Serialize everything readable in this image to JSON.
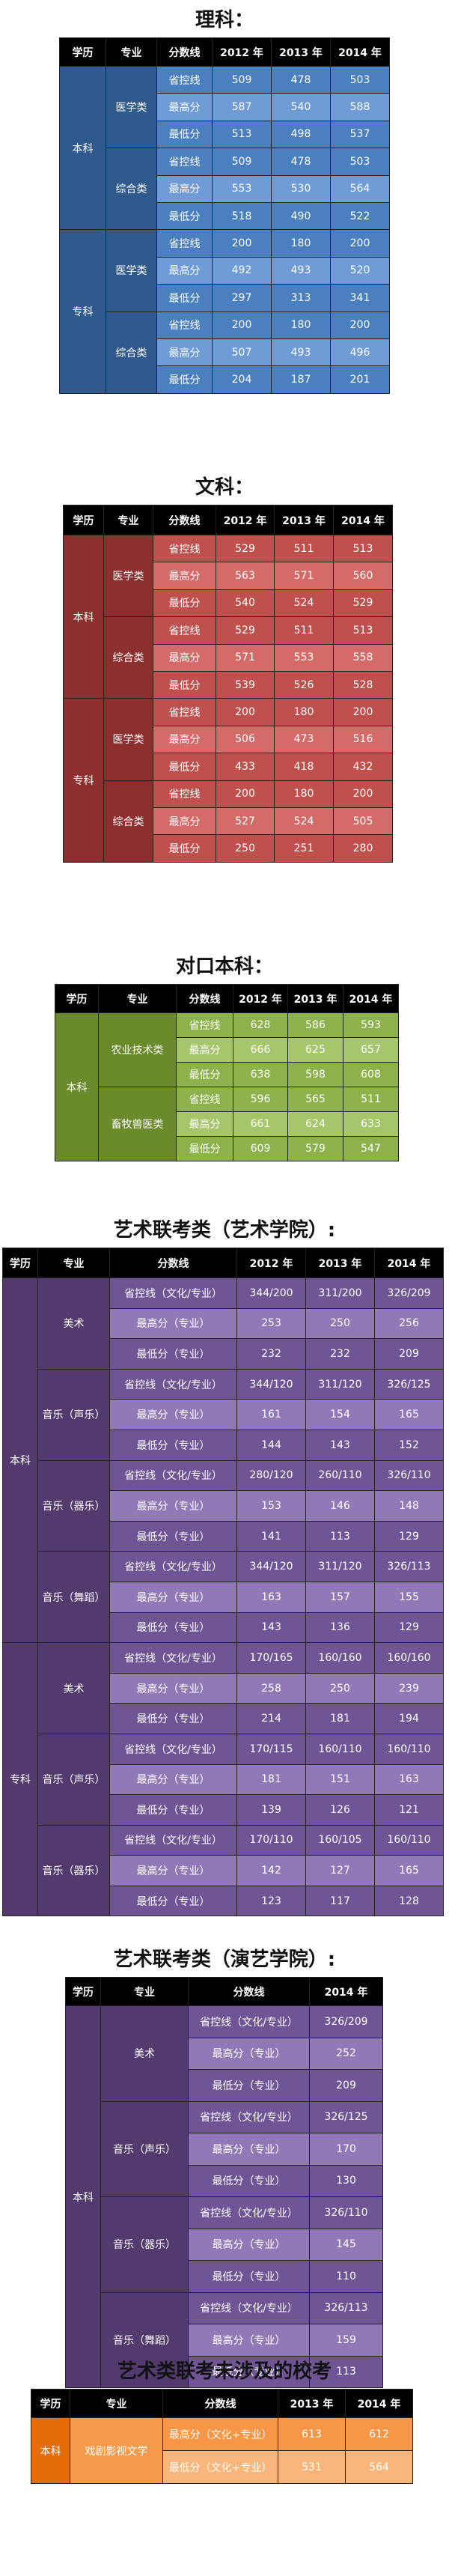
{
  "sections": [
    {
      "title": "理科：",
      "theme": "blue",
      "headers": [
        "学历",
        "专业",
        "分数线",
        "2012 年",
        "2013 年",
        "2014 年"
      ],
      "groups": [
        {
          "level": "本科",
          "majors": [
            {
              "name": "医学类",
              "rows": [
                {
                  "type": "省控线",
                  "values": [
                    "509",
                    "478",
                    "503"
                  ]
                },
                {
                  "type": "最高分",
                  "values": [
                    "587",
                    "540",
                    "588"
                  ]
                },
                {
                  "type": "最低分",
                  "values": [
                    "513",
                    "498",
                    "537"
                  ]
                }
              ]
            },
            {
              "name": "综合类",
              "rows": [
                {
                  "type": "省控线",
                  "values": [
                    "509",
                    "478",
                    "503"
                  ]
                },
                {
                  "type": "最高分",
                  "values": [
                    "553",
                    "530",
                    "564"
                  ]
                },
                {
                  "type": "最低分",
                  "values": [
                    "518",
                    "490",
                    "522"
                  ]
                }
              ]
            }
          ]
        },
        {
          "level": "专科",
          "majors": [
            {
              "name": "医学类",
              "rows": [
                {
                  "type": "省控线",
                  "values": [
                    "200",
                    "180",
                    "200"
                  ]
                },
                {
                  "type": "最高分",
                  "values": [
                    "492",
                    "493",
                    "520"
                  ]
                },
                {
                  "type": "最低分",
                  "values": [
                    "297",
                    "313",
                    "341"
                  ]
                }
              ]
            },
            {
              "name": "综合类",
              "rows": [
                {
                  "type": "省控线",
                  "values": [
                    "200",
                    "180",
                    "200"
                  ]
                },
                {
                  "type": "最高分",
                  "values": [
                    "507",
                    "493",
                    "496"
                  ]
                },
                {
                  "type": "最低分",
                  "values": [
                    "204",
                    "187",
                    "201"
                  ]
                }
              ]
            }
          ]
        }
      ]
    },
    {
      "title": "文科：",
      "theme": "red",
      "headers": [
        "学历",
        "专业",
        "分数线",
        "2012 年",
        "2013 年",
        "2014 年"
      ],
      "groups": [
        {
          "level": "本科",
          "majors": [
            {
              "name": "医学类",
              "rows": [
                {
                  "type": "省控线",
                  "values": [
                    "529",
                    "511",
                    "513"
                  ]
                },
                {
                  "type": "最高分",
                  "values": [
                    "563",
                    "571",
                    "560"
                  ]
                },
                {
                  "type": "最低分",
                  "values": [
                    "540",
                    "524",
                    "529"
                  ]
                }
              ]
            },
            {
              "name": "综合类",
              "rows": [
                {
                  "type": "省控线",
                  "values": [
                    "529",
                    "511",
                    "513"
                  ]
                },
                {
                  "type": "最高分",
                  "values": [
                    "571",
                    "553",
                    "558"
                  ]
                },
                {
                  "type": "最低分",
                  "values": [
                    "539",
                    "526",
                    "528"
                  ]
                }
              ]
            }
          ]
        },
        {
          "level": "专科",
          "majors": [
            {
              "name": "医学类",
              "rows": [
                {
                  "type": "省控线",
                  "values": [
                    "200",
                    "180",
                    "200"
                  ]
                },
                {
                  "type": "最高分",
                  "values": [
                    "506",
                    "473",
                    "516"
                  ]
                },
                {
                  "type": "最低分",
                  "values": [
                    "433",
                    "418",
                    "432"
                  ]
                }
              ]
            },
            {
              "name": "综合类",
              "rows": [
                {
                  "type": "省控线",
                  "values": [
                    "200",
                    "180",
                    "200"
                  ]
                },
                {
                  "type": "最高分",
                  "values": [
                    "527",
                    "524",
                    "505"
                  ]
                },
                {
                  "type": "最低分",
                  "values": [
                    "250",
                    "251",
                    "280"
                  ]
                }
              ]
            }
          ]
        }
      ]
    },
    {
      "title": "对口本科：",
      "theme": "green",
      "headers": [
        "学历",
        "专业",
        "分数线",
        "2012 年",
        "2013 年",
        "2014 年"
      ],
      "groups": [
        {
          "level": "本科",
          "majors": [
            {
              "name": "农业技术类",
              "rows": [
                {
                  "type": "省控线",
                  "values": [
                    "628",
                    "586",
                    "593"
                  ]
                },
                {
                  "type": "最高分",
                  "values": [
                    "666",
                    "625",
                    "657"
                  ]
                },
                {
                  "type": "最低分",
                  "values": [
                    "638",
                    "598",
                    "608"
                  ]
                }
              ]
            },
            {
              "name": "畜牧兽医类",
              "rows": [
                {
                  "type": "省控线",
                  "values": [
                    "596",
                    "565",
                    "511"
                  ]
                },
                {
                  "type": "最高分",
                  "values": [
                    "661",
                    "624",
                    "633"
                  ]
                },
                {
                  "type": "最低分",
                  "values": [
                    "609",
                    "579",
                    "547"
                  ]
                }
              ]
            }
          ]
        }
      ]
    },
    {
      "title": "艺术联考类（艺术学院）:",
      "theme": "purple",
      "headers": [
        "学历",
        "专业",
        "分数线",
        "2012 年",
        "2013 年",
        "2014 年"
      ],
      "groups": [
        {
          "level": "本科",
          "majors": [
            {
              "name": "美术",
              "rows": [
                {
                  "type": "省控线（文化/专业）",
                  "values": [
                    "344/200",
                    "311/200",
                    "326/209"
                  ]
                },
                {
                  "type": "最高分（专业）",
                  "values": [
                    "253",
                    "250",
                    "256"
                  ]
                },
                {
                  "type": "最低分（专业）",
                  "values": [
                    "232",
                    "232",
                    "209"
                  ]
                }
              ]
            },
            {
              "name": "音乐（声乐）",
              "rows": [
                {
                  "type": "省控线（文化/专业）",
                  "values": [
                    "344/120",
                    "311/120",
                    "326/125"
                  ]
                },
                {
                  "type": "最高分（专业）",
                  "values": [
                    "161",
                    "154",
                    "165"
                  ]
                },
                {
                  "type": "最低分（专业）",
                  "values": [
                    "144",
                    "143",
                    "152"
                  ]
                }
              ]
            },
            {
              "name": "音乐（器乐）",
              "rows": [
                {
                  "type": "省控线（文化/专业）",
                  "values": [
                    "280/120",
                    "260/110",
                    "326/110"
                  ]
                },
                {
                  "type": "最高分（专业）",
                  "values": [
                    "153",
                    "146",
                    "148"
                  ]
                },
                {
                  "type": "最低分（专业）",
                  "values": [
                    "141",
                    "113",
                    "129"
                  ]
                }
              ]
            },
            {
              "name": "音乐（舞蹈）",
              "rows": [
                {
                  "type": "省控线（文化/专业）",
                  "values": [
                    "344/120",
                    "311/120",
                    "326/113"
                  ]
                },
                {
                  "type": "最高分（专业）",
                  "values": [
                    "163",
                    "157",
                    "155"
                  ]
                },
                {
                  "type": "最低分（专业）",
                  "values": [
                    "143",
                    "136",
                    "129"
                  ]
                }
              ]
            }
          ]
        },
        {
          "level": "专科",
          "majors": [
            {
              "name": "美术",
              "rows": [
                {
                  "type": "省控线（文化/专业）",
                  "values": [
                    "170/165",
                    "160/160",
                    "160/160"
                  ]
                },
                {
                  "type": "最高分（专业）",
                  "values": [
                    "258",
                    "250",
                    "239"
                  ]
                },
                {
                  "type": "最低分（专业）",
                  "values": [
                    "214",
                    "181",
                    "194"
                  ]
                }
              ]
            },
            {
              "name": "音乐（声乐）",
              "rows": [
                {
                  "type": "省控线（文化/专业）",
                  "values": [
                    "170/115",
                    "160/110",
                    "160/110"
                  ]
                },
                {
                  "type": "最高分（专业）",
                  "values": [
                    "181",
                    "151",
                    "163"
                  ]
                },
                {
                  "type": "最低分（专业）",
                  "values": [
                    "139",
                    "126",
                    "121"
                  ]
                }
              ]
            },
            {
              "name": "音乐（器乐）",
              "rows": [
                {
                  "type": "省控线（文化/专业）",
                  "values": [
                    "170/110",
                    "160/105",
                    "160/110"
                  ]
                },
                {
                  "type": "最高分（专业）",
                  "values": [
                    "142",
                    "127",
                    "165"
                  ]
                },
                {
                  "type": "最低分（专业）",
                  "values": [
                    "123",
                    "117",
                    "128"
                  ]
                }
              ]
            }
          ]
        }
      ]
    },
    {
      "title": "艺术联考类（演艺学院）:",
      "theme": "purple",
      "headers": [
        "学历",
        "专业",
        "分数线",
        "2014 年"
      ],
      "groups": [
        {
          "level": "本科",
          "majors": [
            {
              "name": "美术",
              "rows": [
                {
                  "type": "省控线（文化/专业）",
                  "values": [
                    "326/209"
                  ]
                },
                {
                  "type": "最高分（专业）",
                  "values": [
                    "252"
                  ]
                },
                {
                  "type": "最低分（专业）",
                  "values": [
                    "209"
                  ]
                }
              ]
            },
            {
              "name": "音乐（声乐）",
              "rows": [
                {
                  "type": "省控线（文化/专业）",
                  "values": [
                    "326/125"
                  ]
                },
                {
                  "type": "最高分（专业）",
                  "values": [
                    "170"
                  ]
                },
                {
                  "type": "最低分（专业）",
                  "values": [
                    "130"
                  ]
                }
              ]
            },
            {
              "name": "音乐（器乐）",
              "rows": [
                {
                  "type": "省控线（文化/专业）",
                  "values": [
                    "326/110"
                  ]
                },
                {
                  "type": "最高分（专业）",
                  "values": [
                    "145"
                  ]
                },
                {
                  "type": "最低分（专业）",
                  "values": [
                    "110"
                  ]
                }
              ]
            },
            {
              "name": "音乐（舞蹈）",
              "rows": [
                {
                  "type": "省控线（文化/专业）",
                  "values": [
                    "326/113"
                  ]
                },
                {
                  "type": "最高分（专业）",
                  "values": [
                    "159"
                  ]
                },
                {
                  "type": "最低分（专业）",
                  "values": [
                    "113"
                  ]
                }
              ]
            }
          ]
        }
      ]
    },
    {
      "title": "艺术类联考未涉及的校考",
      "theme": "orange",
      "headers": [
        "学历",
        "专业",
        "分数线",
        "2013 年",
        "2014 年"
      ],
      "groups": [
        {
          "level": "本科",
          "majors": [
            {
              "name": "戏剧影视文学",
              "rows": [
                {
                  "type": "最高分（文化+专业）",
                  "values": [
                    "613",
                    "612"
                  ]
                },
                {
                  "type": "最低分（文化+专业）",
                  "values": [
                    "531",
                    "564"
                  ]
                }
              ]
            }
          ]
        }
      ]
    }
  ]
}
